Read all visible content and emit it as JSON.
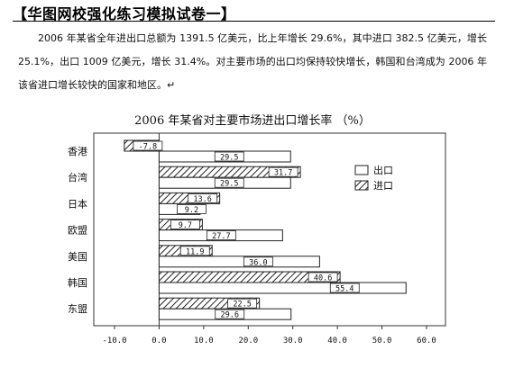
{
  "header": {
    "title": "【华图网校强化练习模拟试卷一】"
  },
  "paragraph": {
    "text": "2006 年某省全年进出口总额为 1391.5 亿美元，比上年增长 29.6%，其中进口 382.5 亿美元，增长 25.1%，出口 1009 亿美元，增长 31.4%。对主要市场的出口均保持较快增长，韩国和台湾成为 2006 年该省进口增长较快的国家和地区。↵"
  },
  "chart_data": {
    "type": "bar",
    "orientation": "horizontal",
    "title": "2006 年某省对主要市场进出口增长率 （%）",
    "categories": [
      "香港",
      "台湾",
      "日本",
      "欧盟",
      "美国",
      "韩国",
      "东盟"
    ],
    "series": [
      {
        "name": "进口",
        "values": [
          -7.8,
          31.7,
          13.6,
          9.7,
          11.9,
          40.6,
          22.5
        ],
        "pattern": "hatch"
      },
      {
        "name": "出口",
        "values": [
          29.5,
          29.5,
          9.2,
          27.7,
          36.0,
          55.4,
          29.6
        ],
        "pattern": "solid-white"
      }
    ],
    "value_labels": {
      "进口": [
        "-7.8",
        "31.7",
        "13.6",
        "9.7",
        "11.9",
        "40.6",
        "22.5"
      ],
      "出口": [
        "29.5",
        "29.5",
        "9.2",
        "27.7",
        "36.0",
        "55.4",
        "29.6"
      ]
    },
    "xlim": [
      -10,
      60
    ],
    "xticks": [
      "-10.0",
      "0.0",
      "10.0",
      "20.0",
      "30.0",
      "40.0",
      "50.0",
      "60.0"
    ],
    "legend_position": "right"
  }
}
